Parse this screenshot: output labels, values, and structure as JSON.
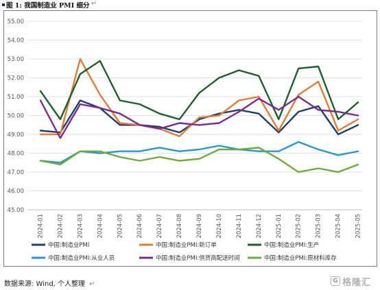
{
  "title": {
    "text": "图 1:  我国制造业 PMI 细分",
    "return_mark": "↵"
  },
  "source": {
    "text": "数据来源:  Wind,  个人整理",
    "return_mark": "↵"
  },
  "watermark": {
    "logo_glyph": "G",
    "text": "格隆汇"
  },
  "chart_data": {
    "type": "line",
    "title": "",
    "xlabel": "",
    "ylabel": "",
    "ylim": [
      45.0,
      55.0
    ],
    "yticks": [
      "45.00",
      "46.00",
      "47.00",
      "48.00",
      "49.00",
      "50.00",
      "51.00",
      "52.00",
      "53.00",
      "54.00",
      "55.00"
    ],
    "grid": "horizontal",
    "legend_position": "bottom",
    "x": [
      "2024-01",
      "2024-02",
      "2024-03",
      "2024-04",
      "2024-05",
      "2024-06",
      "2024-07",
      "2024-08",
      "2024-09",
      "2024-10",
      "2024-11",
      "2024-12",
      "2025-01",
      "2025-02",
      "2025-03",
      "2025-04",
      "2025-05"
    ],
    "series": [
      {
        "name": "中国:制造业PMI",
        "color": "#1f3d6b",
        "values": [
          49.2,
          49.1,
          50.8,
          50.4,
          49.5,
          49.5,
          49.4,
          49.1,
          49.8,
          50.1,
          50.3,
          50.1,
          49.1,
          50.2,
          50.5,
          49.0,
          49.5
        ]
      },
      {
        "name": "中国:制造业PMI:新订单",
        "color": "#e07b39",
        "values": [
          49.0,
          49.0,
          53.0,
          51.1,
          49.6,
          49.5,
          49.3,
          48.9,
          49.9,
          50.0,
          50.8,
          51.0,
          49.2,
          51.1,
          51.8,
          49.2,
          49.8
        ]
      },
      {
        "name": "中国:制造业PMI:生产",
        "color": "#1e5e2a",
        "values": [
          51.3,
          49.8,
          52.2,
          52.9,
          50.8,
          50.6,
          50.1,
          49.8,
          51.2,
          52.0,
          52.4,
          52.1,
          49.8,
          52.5,
          52.6,
          49.8,
          50.7
        ]
      },
      {
        "name": "中国:制造业PMI:从业人员",
        "color": "#2796c8",
        "values": [
          47.6,
          47.5,
          48.1,
          48.0,
          48.1,
          48.1,
          48.3,
          48.1,
          48.2,
          48.4,
          48.2,
          48.1,
          48.1,
          48.6,
          48.2,
          47.9,
          48.1
        ]
      },
      {
        "name": "中国:制造业PMI:供货商配送时间",
        "color": "#7a2a8c",
        "values": [
          50.8,
          48.8,
          50.6,
          50.4,
          50.1,
          49.5,
          49.3,
          49.6,
          49.5,
          49.6,
          50.2,
          50.9,
          50.3,
          51.0,
          50.3,
          50.2,
          50.0
        ]
      },
      {
        "name": "中国:制造业PMI:原材料库存",
        "color": "#6bab3c",
        "values": [
          47.6,
          47.4,
          48.1,
          48.1,
          47.8,
          47.6,
          47.8,
          47.6,
          47.7,
          48.2,
          48.2,
          48.3,
          47.7,
          47.0,
          47.2,
          47.0,
          47.4
        ]
      }
    ]
  }
}
